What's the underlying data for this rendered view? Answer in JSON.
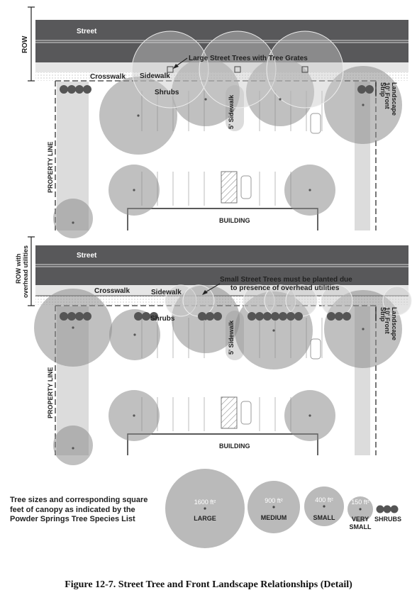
{
  "panels": [
    {
      "row_label": "ROW",
      "street_label": "Street",
      "callout": "Large Street Trees with Tree Grates",
      "crosswalk_label": "Crosswalk",
      "sidewalk_label": "Sidewalk",
      "shrubs_label": "Shrubs",
      "side_sidewalk_label": "5' Sidewalk",
      "property_line_label": "PROPERTY LINE",
      "building_label": "BUILDING",
      "strip_label_1": "10' Front",
      "strip_label_2": "Landscape",
      "strip_label_3": "Strip"
    },
    {
      "row_label_1": "ROW with",
      "row_label_2": "overhead utilities",
      "street_label": "Street",
      "callout_1": "Small Street Trees must be planted due",
      "callout_2": "to presence of overhead utilities",
      "crosswalk_label": "Crosswalk",
      "sidewalk_label": "Sidewalk",
      "shrubs_label": "Shrubs",
      "side_sidewalk_label": "5' Sidewalk",
      "property_line_label": "PROPERTY LINE",
      "building_label": "BUILDING",
      "strip_label_1": "10' Front",
      "strip_label_2": "Landscape",
      "strip_label_3": "Strip"
    }
  ],
  "legend": {
    "description": "Tree sizes and corresponding square feet of canopy as indicated by the Powder Springs Tree Species List",
    "large_area": "1600 ft²",
    "large_label": "LARGE",
    "medium_area": "900 ft²",
    "medium_label": "MEDIUM",
    "small_area": "400 ft²",
    "small_label": "SMALL",
    "very_small_area": "150 ft²",
    "very_small_label_1": "VERY",
    "very_small_label_2": "SMALL",
    "shrubs_label": "SHRUBS"
  },
  "caption": "Figure 12-7. Street Tree and Front Landscape Relationships (Detail)",
  "colors": {
    "street": "#58585a",
    "walk": "#dcdcdc",
    "canopy": "#8c8c8c",
    "shrub": "#555555"
  }
}
